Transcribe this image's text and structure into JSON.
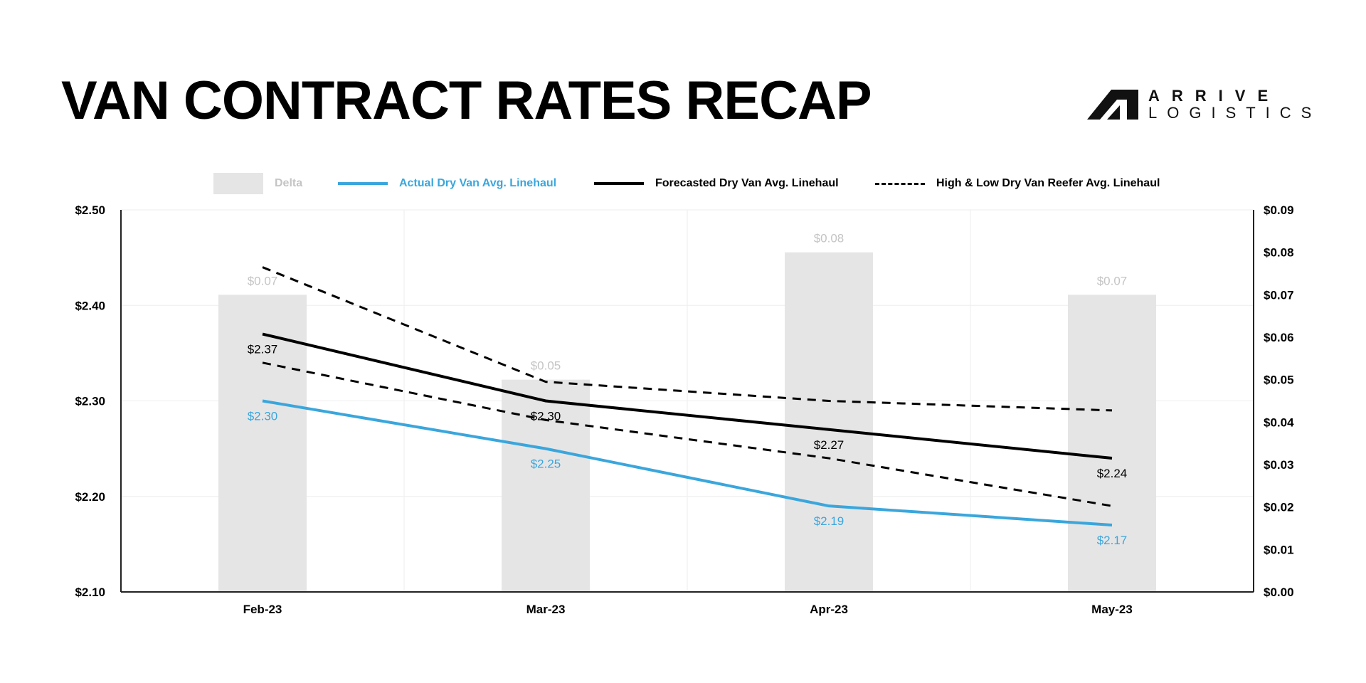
{
  "header": {
    "title": "VAN CONTRACT RATES RECAP",
    "logo_line1": "ARRIVE",
    "logo_line2": "LOGISTICS"
  },
  "colors": {
    "actual": "#3aa6dc",
    "forecast": "#000000",
    "range": "#000000",
    "delta_bar": "#e6e5e6",
    "delta_label": "#c4c4c4",
    "grid": "#eeeeee"
  },
  "legend": {
    "delta": "Delta",
    "actual": "Actual Dry Van Avg. Linehaul",
    "forecast": "Forecasted Dry Van Avg. Linehaul",
    "range": "High & Low Dry Van Reefer Avg. Linehaul"
  },
  "chart_data": {
    "type": "line",
    "categories": [
      "Feb-23",
      "Mar-23",
      "Apr-23",
      "May-23"
    ],
    "y_left": {
      "min": 2.1,
      "max": 2.5,
      "ticks": [
        "$2.10",
        "$2.20",
        "$2.30",
        "$2.40",
        "$2.50"
      ]
    },
    "y_right": {
      "min": 0.0,
      "max": 0.09,
      "ticks": [
        "$0.00",
        "$0.01",
        "$0.02",
        "$0.03",
        "$0.04",
        "$0.05",
        "$0.06",
        "$0.07",
        "$0.08",
        "$0.09"
      ]
    },
    "grid": true,
    "legend_position": "top",
    "bar_series": {
      "name": "Delta",
      "axis": "right",
      "values": [
        0.07,
        0.05,
        0.08,
        0.07
      ],
      "labels": [
        "$0.07",
        "$0.05",
        "$0.08",
        "$0.07"
      ]
    },
    "series": [
      {
        "name": "Actual Dry Van Avg. Linehaul",
        "axis": "left",
        "values": [
          2.3,
          2.25,
          2.19,
          2.17
        ],
        "labels": [
          "$2.30",
          "$2.25",
          "$2.19",
          "$2.17"
        ]
      },
      {
        "name": "Forecasted Dry Van Avg. Linehaul",
        "axis": "left",
        "values": [
          2.37,
          2.3,
          2.27,
          2.24
        ],
        "labels": [
          "$2.37",
          "$2.30",
          "$2.27",
          "$2.24"
        ]
      },
      {
        "name": "High & Low Dry Van Reefer Avg. Linehaul",
        "axis": "left",
        "high": [
          2.44,
          2.32,
          2.3,
          2.29
        ],
        "low": [
          2.34,
          2.28,
          2.24,
          2.19
        ]
      }
    ]
  }
}
